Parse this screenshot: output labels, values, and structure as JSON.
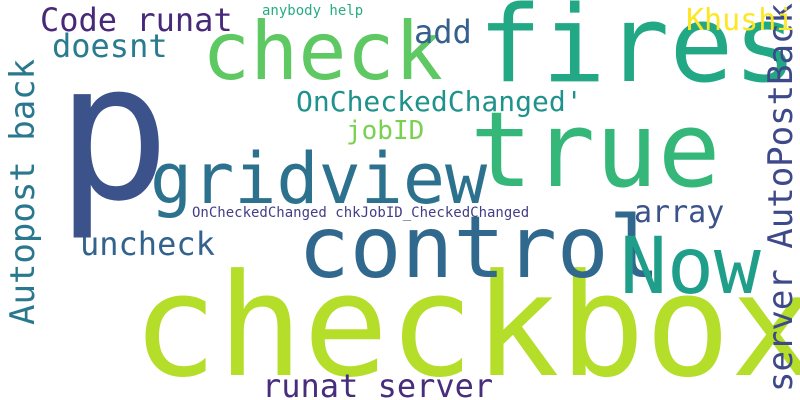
{
  "words": [
    {
      "id": "p",
      "text": "p",
      "color": "#3b528b",
      "orientation": "horizontal"
    },
    {
      "id": "checkbox",
      "text": "checkbox",
      "color": "#b5de2b",
      "orientation": "horizontal"
    },
    {
      "id": "fires",
      "text": "fires",
      "color": "#22a884",
      "orientation": "horizontal"
    },
    {
      "id": "true",
      "text": "true",
      "color": "#35b779",
      "orientation": "horizontal"
    },
    {
      "id": "check",
      "text": "check",
      "color": "#5ec962",
      "orientation": "horizontal"
    },
    {
      "id": "control",
      "text": "control",
      "color": "#31688e",
      "orientation": "horizontal"
    },
    {
      "id": "now",
      "text": "Now",
      "color": "#1f9e89",
      "orientation": "horizontal"
    },
    {
      "id": "gridview",
      "text": "gridview",
      "color": "#2c728e",
      "orientation": "horizontal"
    },
    {
      "id": "server-autopostback",
      "text": "server AutoPostBack",
      "color": "#3e4989",
      "orientation": "vertical"
    },
    {
      "id": "autopost-back",
      "text": "Autopost back",
      "color": "#2a788e",
      "orientation": "vertical"
    },
    {
      "id": "code-runat",
      "text": "Code runat",
      "color": "#482878",
      "orientation": "horizontal"
    },
    {
      "id": "runat-server",
      "text": "runat server",
      "color": "#472d7b",
      "orientation": "horizontal"
    },
    {
      "id": "oncheckedchanged",
      "text": "OnCheckedChanged'",
      "color": "#20928c",
      "orientation": "horizontal"
    },
    {
      "id": "khushi",
      "text": "Khushi",
      "color": "#fde725",
      "orientation": "horizontal"
    },
    {
      "id": "doesnt",
      "text": "doesnt",
      "color": "#287c8e",
      "orientation": "horizontal"
    },
    {
      "id": "add",
      "text": "add",
      "color": "#355f8d",
      "orientation": "horizontal"
    },
    {
      "id": "uncheck",
      "text": "uncheck",
      "color": "#33638d",
      "orientation": "horizontal"
    },
    {
      "id": "array",
      "text": "array",
      "color": "#3b528b",
      "orientation": "horizontal"
    },
    {
      "id": "jobid",
      "text": "jobID",
      "color": "#7ad151",
      "orientation": "horizontal"
    },
    {
      "id": "oncheckedchanged-chkjobid",
      "text": "OnCheckedChanged chkJobID_CheckedChanged",
      "color": "#433e85",
      "orientation": "horizontal"
    },
    {
      "id": "anybody-help",
      "text": "anybody help",
      "color": "#25ac82",
      "orientation": "horizontal"
    }
  ]
}
